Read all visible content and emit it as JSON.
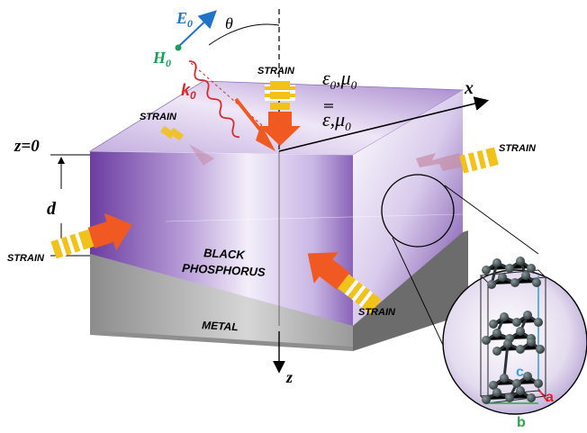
{
  "labels": {
    "E0_main": "E",
    "E0_sub": "0",
    "H0_main": "H",
    "H0_sub": "0",
    "k0_main": "k",
    "k0_sub": "0",
    "theta": "θ",
    "x_axis": "x",
    "z_axis": "z",
    "z0": "z=0",
    "d": "d",
    "upper_medium": "ε",
    "upper_medium_sub": "0",
    "upper_medium_mu": ",μ",
    "upper_medium_mu_sub": "0",
    "lower_medium": "ε",
    "lower_medium_mu": ",μ",
    "lower_medium_mu_sub": "0",
    "black_line1": "BLACK",
    "black_line2": "PHOSPHORUS",
    "metal": "METAL",
    "strain": "STRAIN",
    "lattice_a": "a",
    "lattice_b": "b",
    "lattice_c": "c"
  },
  "colors": {
    "E_field": "#1f73c8",
    "H_field": "#16a05a",
    "k_vector": "#d82a2a",
    "purple_dark": "#6a3a9c",
    "purple_light": "#efe8f7",
    "strain_arrow": "#f05a22",
    "strain_stripe": "#f2c21b",
    "metal": "#9a9a9a",
    "lattice_a": "#e0202a",
    "lattice_b": "#2aa84a",
    "lattice_c": "#3aa0e0",
    "atom": "#3b4a4c"
  }
}
